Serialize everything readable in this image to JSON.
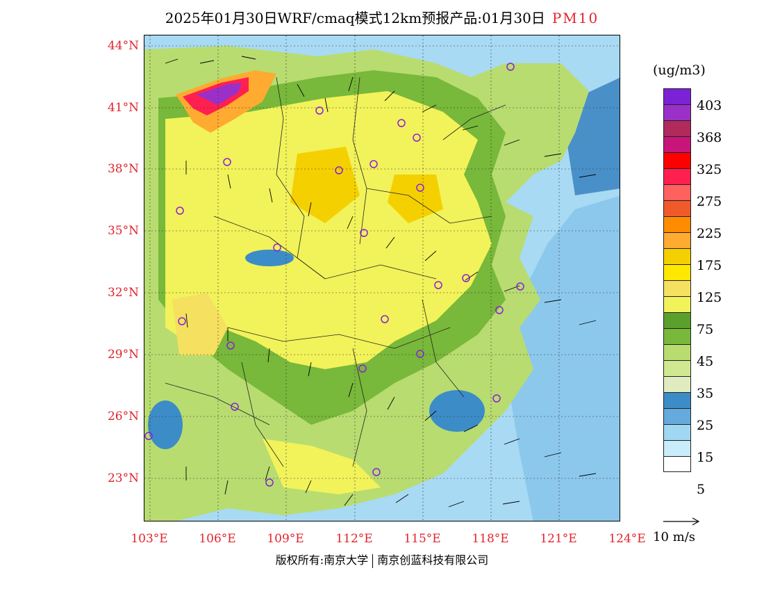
{
  "title": {
    "main": "2025年01月30日WRF/cmaq模式12km预报产品:01月30日",
    "pollutant": "PM10"
  },
  "axes": {
    "lat_labels": [
      "44°N",
      "41°N",
      "38°N",
      "35°N",
      "32°N",
      "29°N",
      "26°N",
      "23°N"
    ],
    "lon_labels": [
      "103°E",
      "106°E",
      "109°E",
      "112°E",
      "115°E",
      "118°E",
      "121°E",
      "124°E"
    ]
  },
  "legend": {
    "unit": "(ug/m3)",
    "labels": [
      "403",
      "368",
      "325",
      "275",
      "225",
      "175",
      "125",
      "75",
      "45",
      "35",
      "25",
      "15",
      "5"
    ],
    "colors": [
      "#7b22d6",
      "#9b30c8",
      "#b02a5c",
      "#c8157a",
      "#ff0000",
      "#ff2050",
      "#ff6060",
      "#f05a2a",
      "#ff8c00",
      "#ffaa30",
      "#f5d000",
      "#ffe800",
      "#f5e060",
      "#f2f25a",
      "#5aa02a",
      "#78b83a",
      "#b8dc70",
      "#d0e890",
      "#e0ecc0",
      "#3c8cc8",
      "#64aadc",
      "#a0d8f4",
      "#c8ecfa",
      "#ffffff"
    ]
  },
  "wind_scale": "10 m/s",
  "footer": {
    "left": "版权所有:南京大学",
    "right": "南京创蓝科技有限公司"
  }
}
